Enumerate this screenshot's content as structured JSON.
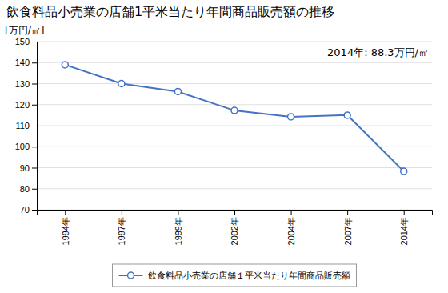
{
  "chart_data": {
    "type": "line",
    "title": "飲食料品小売業の店舗1平米当たり年間商品販売額の推移",
    "ylabel": "[万円/㎡]",
    "annotation": "2014年: 88.3万円/㎡",
    "categories": [
      "1994年",
      "1997年",
      "1999年",
      "2002年",
      "2004年",
      "2007年",
      "2014年"
    ],
    "series": [
      {
        "name": "飲食料品小売業の店舗１平米当たり年間商品販売額",
        "color": "#4472C4",
        "marker": "circle",
        "values": [
          139.0,
          130.0,
          126.2,
          117.2,
          114.2,
          115.0,
          88.3
        ]
      }
    ],
    "ylim": [
      70,
      150
    ],
    "yticks": [
      70,
      80,
      90,
      100,
      110,
      120,
      130,
      140,
      150
    ],
    "grid": true,
    "legend": "bottom"
  }
}
